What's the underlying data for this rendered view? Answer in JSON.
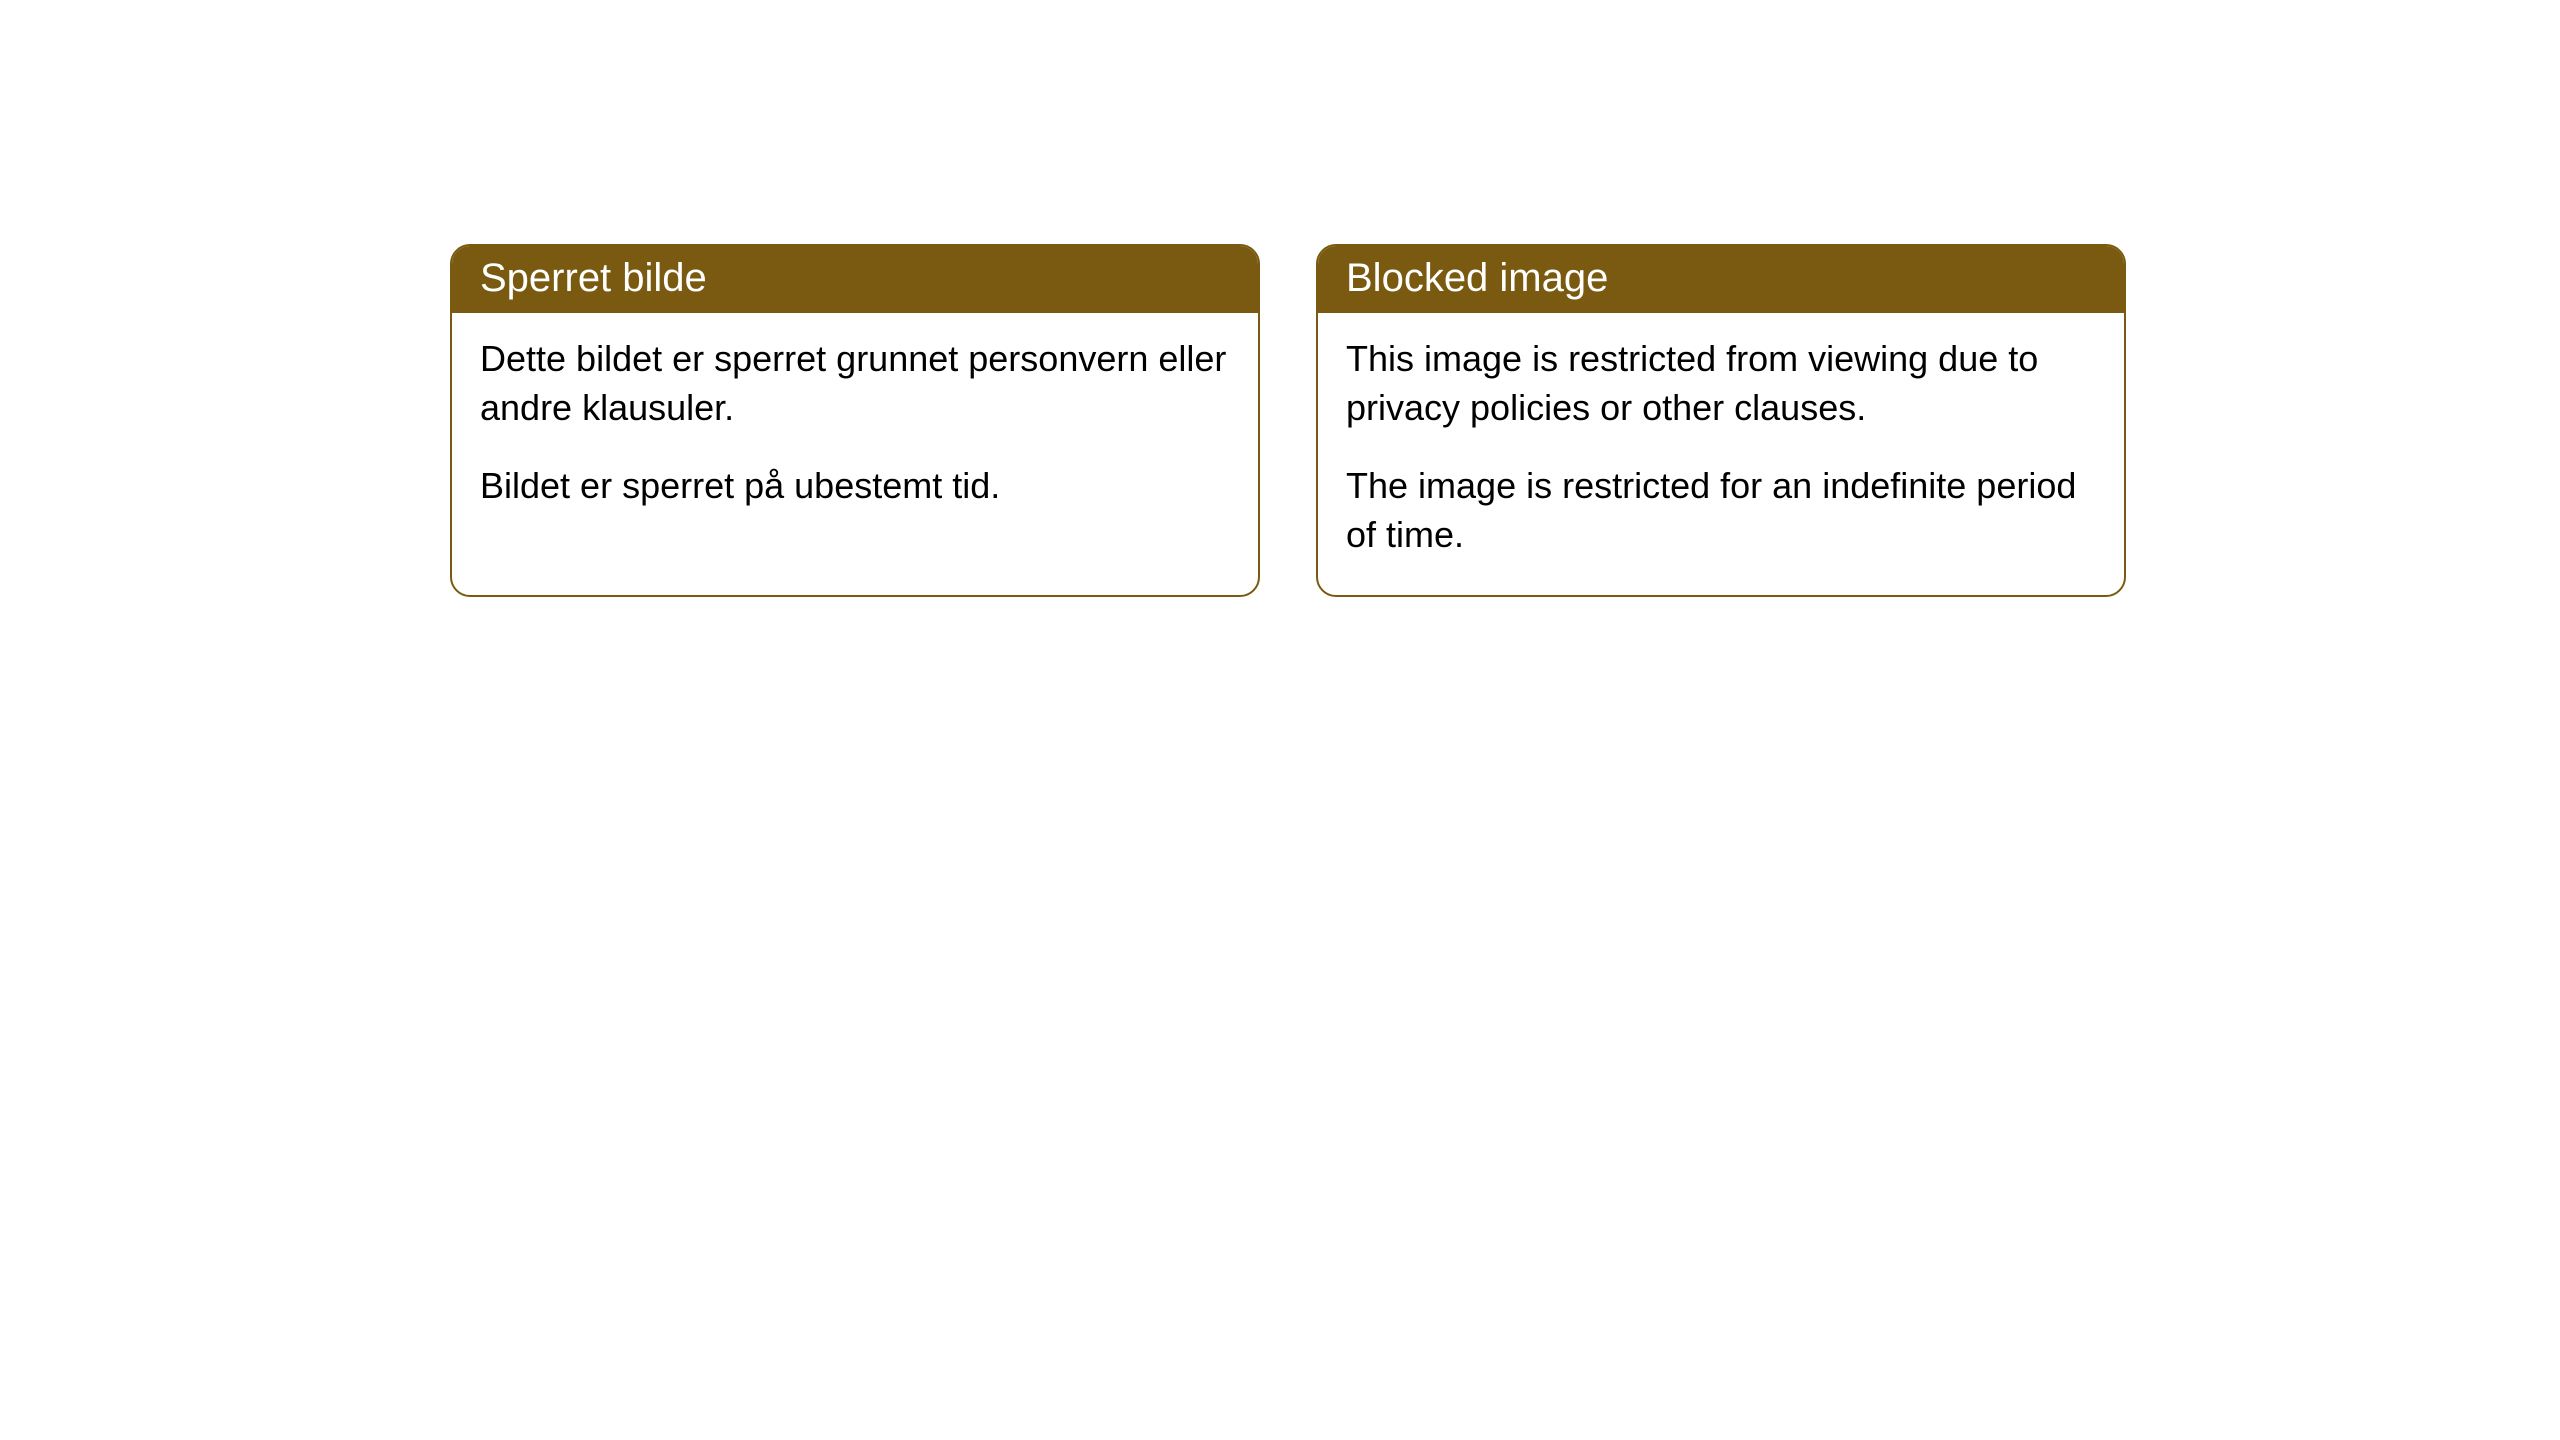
{
  "cards": [
    {
      "title": "Sperret bilde",
      "paragraph1": "Dette bildet er sperret grunnet personvern eller andre klausuler.",
      "paragraph2": "Bildet er sperret på ubestemt tid."
    },
    {
      "title": "Blocked image",
      "paragraph1": "This image is restricted from viewing due to privacy policies or other clauses.",
      "paragraph2": "The image is restricted for an indefinite period of time."
    }
  ],
  "styling": {
    "header_background": "#795a10",
    "header_text_color": "#ffffff",
    "border_color": "#795a10",
    "body_background": "#ffffff",
    "body_text_color": "#000000",
    "border_radius": 20,
    "title_fontsize": 40,
    "body_fontsize": 36
  }
}
